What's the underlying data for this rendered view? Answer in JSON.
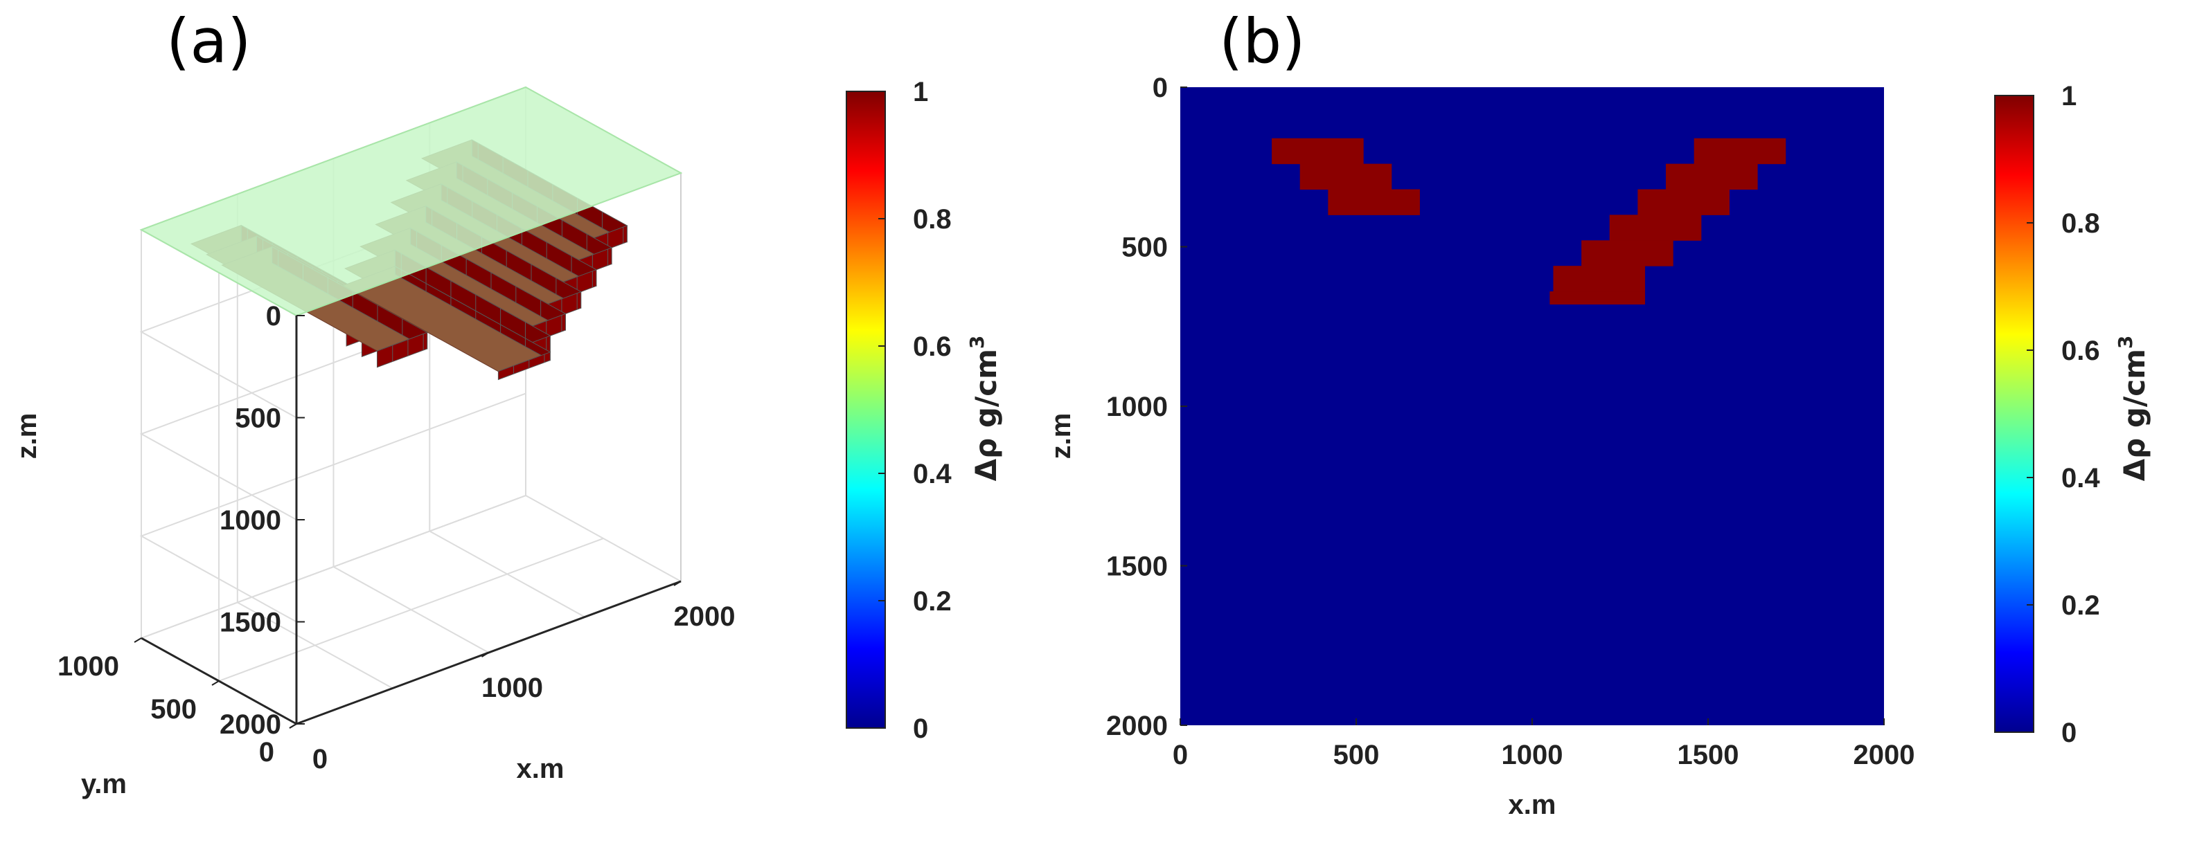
{
  "panels": {
    "a": {
      "label": "(a)"
    },
    "b": {
      "label": "(b)"
    }
  },
  "chart_data": [
    {
      "type": "heatmap",
      "view": "3d-voxel",
      "panel": "(a)",
      "title": "",
      "xlabel": "x.m",
      "ylabel": "y.m",
      "zlabel": "z.m",
      "xlim": [
        0,
        2000
      ],
      "ylim": [
        0,
        1000
      ],
      "zlim": [
        0,
        2000
      ],
      "z_reversed": true,
      "x_ticks": [
        "0",
        "1000",
        "2000"
      ],
      "y_ticks": [
        "0",
        "500",
        "1000"
      ],
      "z_ticks": [
        "0",
        "500",
        "1000",
        "1500",
        "2000"
      ],
      "grid": true,
      "surface_plane": {
        "z": 0,
        "color": "#c8f7c8"
      },
      "colorbar": {
        "label": "Δρ g/cm³",
        "ticks": [
          "0",
          "0.2",
          "0.4",
          "0.6",
          "0.8",
          "1"
        ],
        "range": [
          0,
          1
        ]
      },
      "voxel_color": "#8b0000",
      "anomaly": "V-shaped body, density contrast 1 g/cm³, extending through y 0–1000 m; cross-section shown in (b)"
    },
    {
      "type": "heatmap",
      "panel": "(b)",
      "title": "",
      "xlabel": "x.m",
      "ylabel": "z.m",
      "xlim": [
        0,
        2000
      ],
      "ylim": [
        0,
        2000
      ],
      "y_reversed": true,
      "x_ticks": [
        "0",
        "500",
        "1000",
        "1500",
        "2000"
      ],
      "y_ticks": [
        "0",
        "500",
        "1000",
        "1500",
        "2000"
      ],
      "grid": false,
      "background_value": 0,
      "background_color": "#00008f",
      "anomaly_value": 1,
      "anomaly_color": "#8b0000",
      "cell_size": 80,
      "anomaly_cells": [
        {
          "x": [
            260,
            520
          ],
          "z": [
            160,
            240
          ]
        },
        {
          "x": [
            340,
            600
          ],
          "z": [
            240,
            320
          ]
        },
        {
          "x": [
            420,
            680
          ],
          "z": [
            320,
            400
          ]
        },
        {
          "x": [
            1460,
            1720
          ],
          "z": [
            160,
            240
          ]
        },
        {
          "x": [
            1380,
            1640
          ],
          "z": [
            240,
            320
          ]
        },
        {
          "x": [
            1300,
            1560
          ],
          "z": [
            320,
            400
          ]
        },
        {
          "x": [
            1220,
            1480
          ],
          "z": [
            400,
            480
          ]
        },
        {
          "x": [
            1140,
            1400
          ],
          "z": [
            480,
            560
          ]
        },
        {
          "x": [
            1060,
            1320
          ],
          "z": [
            560,
            640
          ]
        },
        {
          "x": [
            1050,
            1320
          ],
          "z": [
            640,
            680
          ]
        }
      ],
      "colorbar": {
        "label": "Δρ g/cm³",
        "ticks": [
          "0",
          "0.2",
          "0.4",
          "0.6",
          "0.8",
          "1"
        ],
        "range": [
          0,
          1
        ]
      }
    }
  ]
}
